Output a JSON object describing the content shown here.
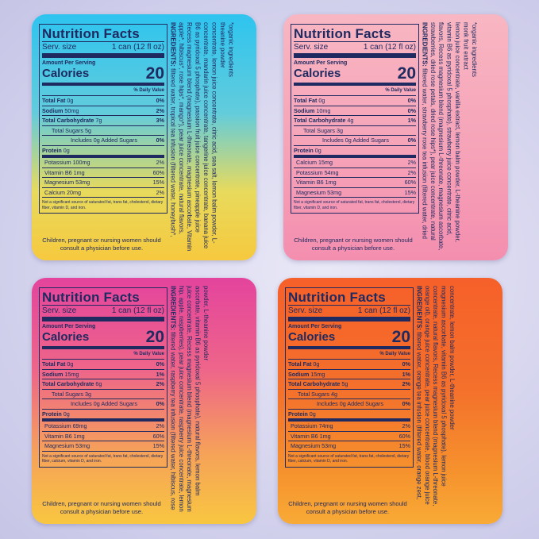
{
  "cards": [
    {
      "nutrition_title": "Nutrition Facts",
      "serving_label": "Serv. size",
      "serving_size": "1 can (12 fl oz)",
      "amount_per_serving": "Amount Per Serving",
      "calories_label": "Calories",
      "calories": 20,
      "daily_value_header": "% Daily Value",
      "macros": [
        {
          "name": "Total Fat",
          "amount": "0g",
          "dv": "0%"
        },
        {
          "name": "Sodium",
          "amount": "50mg",
          "dv": "2%"
        },
        {
          "name": "Total Carbohydrate",
          "amount": "7g",
          "dv": "3%"
        },
        {
          "name": "Total Sugars",
          "amount": "5g"
        },
        {
          "name": "Includes 0g Added Sugars",
          "dv": "0%"
        },
        {
          "name": "Protein",
          "amount": "0g"
        }
      ],
      "micros": [
        {
          "name": "Potassium",
          "amount": "100mg",
          "dv": "2%"
        },
        {
          "name": "Vitamin B6",
          "amount": "1mg",
          "dv": "60%"
        },
        {
          "name": "Magnesium",
          "amount": "53mg",
          "dv": "15%"
        },
        {
          "name": "Calcium",
          "amount": "20mg",
          "dv": "2%"
        }
      ],
      "footnote": "Not a significant source of saturated fat, trans fat, cholesterol, dietary fiber, vitamin D, and iron.",
      "warning": "Children, pregnant or nursing women should consult a physician before use.",
      "ingredients_label": "INGREDIENTS:",
      "ingredients": "filtered water, tropical tea infusion (filtered water, honeybush*, apple*, hibiscus*, rose hips*, mango*), pear juice concentrate, natural flavors, Recess magnesium blend (magnesium L-threonate, magnesium ascorbate, Vitamin B6 as pyridoxal 5 phosphate), passion fruit juice concentrate, pineapple juice concentrate, mandarin juice concentrate, tangerine juice concentrate, banana juice concentrate, lemon juice concentrate, citric acid, sea salt, lemon balm powder, L-theanine powder",
      "organic_note": "*organic ingredients"
    },
    {
      "nutrition_title": "Nutrition Facts",
      "serving_label": "Serv. size",
      "serving_size": "1 can (12 fl oz)",
      "amount_per_serving": "Amount Per Serving",
      "calories_label": "Calories",
      "calories": 20,
      "daily_value_header": "% Daily Value",
      "macros": [
        {
          "name": "Total Fat",
          "amount": "0g",
          "dv": "0%"
        },
        {
          "name": "Sodium",
          "amount": "10mg",
          "dv": "0%"
        },
        {
          "name": "Total Carbohydrate",
          "amount": "4g",
          "dv": "1%"
        },
        {
          "name": "Total Sugars",
          "amount": "3g"
        },
        {
          "name": "Includes 0g Added Sugars",
          "dv": "0%"
        },
        {
          "name": "Protein",
          "amount": "0g"
        }
      ],
      "micros": [
        {
          "name": "Calcium",
          "amount": "15mg",
          "dv": "2%"
        },
        {
          "name": "Potassium",
          "amount": "54mg",
          "dv": "2%"
        },
        {
          "name": "Vitamin B6",
          "amount": "1mg",
          "dv": "60%"
        },
        {
          "name": "Magnesium",
          "amount": "53mg",
          "dv": "15%"
        }
      ],
      "footnote": "Not a significant source of saturated fat, trans fat, cholesterol, dietary fiber, vitamin D, and iron.",
      "warning": "Children, pregnant or nursing women should consult a physician before use.",
      "ingredients_label": "INGREDIENTS:",
      "ingredients": "filtered water, strawberry rose tea infusion (filtered water, dried strawberries, dried rose petals, dried rose hips*), pear juice concentrate, natural flavors, Recess magnesium blend (magnesium L-threonate, magnesium ascorbate, vitamin B6 as pyridoxal 5 phosphate), strawberry juice concentrate, citric acid, lemon juice concentrate, vanilla extract, lemon balm powder, L-theanine powder, monk fruit extract",
      "organic_note": "*organic ingredients"
    },
    {
      "nutrition_title": "Nutrition Facts",
      "serving_label": "Serv. size",
      "serving_size": "1 can (12 fl oz)",
      "amount_per_serving": "Amount Per Serving",
      "calories_label": "Calories",
      "calories": 20,
      "daily_value_header": "% Daily Value",
      "macros": [
        {
          "name": "Total Fat",
          "amount": "0g",
          "dv": "0%"
        },
        {
          "name": "Sodium",
          "amount": "15mg",
          "dv": "1%"
        },
        {
          "name": "Total Carbohydrate",
          "amount": "6g",
          "dv": "2%"
        },
        {
          "name": "Total Sugars",
          "amount": "3g"
        },
        {
          "name": "Includes 0g Added Sugars",
          "dv": "0%"
        },
        {
          "name": "Protein",
          "amount": "0g"
        }
      ],
      "micros": [
        {
          "name": "Potassium",
          "amount": "69mg",
          "dv": "2%"
        },
        {
          "name": "Vitamin B6",
          "amount": "1mg",
          "dv": "60%"
        },
        {
          "name": "Magnesium",
          "amount": "53mg",
          "dv": "15%"
        }
      ],
      "footnote": "Not a significant source of saturated fat, trans fat, cholesterol, dietary fiber, calcium, vitamin D, and iron.",
      "warning": "Children, pregnant or nursing women should consult a physician before use.",
      "ingredients_label": "INGREDIENTS:",
      "ingredients": "filtered water, raspberry tea infusion (filtered water, hibiscus, rose hip, apple, raspberries), pear juice concentrate, raspberry juice concentrate, lemon juice concentrate, Recess magnesium blend (magnesium L-threonate, magnesium ascorbate, vitamin B6 as pyridoxal 5 phosphate), natural flavors, lemon balm powder, L-theanine powder"
    },
    {
      "nutrition_title": "Nutrition Facts",
      "serving_label": "Serv. size",
      "serving_size": "1 can (12 fl oz)",
      "amount_per_serving": "Amount Per Serving",
      "calories_label": "Calories",
      "calories": 20,
      "daily_value_header": "% Daily Value",
      "macros": [
        {
          "name": "Total Fat",
          "amount": "0g",
          "dv": "0%"
        },
        {
          "name": "Sodium",
          "amount": "15mg",
          "dv": "1%"
        },
        {
          "name": "Total Carbohydrate",
          "amount": "5g",
          "dv": "2%"
        },
        {
          "name": "Total Sugars",
          "amount": "4g"
        },
        {
          "name": "Includes 0g Added Sugars",
          "dv": "0%"
        },
        {
          "name": "Protein",
          "amount": "0g"
        }
      ],
      "micros": [
        {
          "name": "Potassium",
          "amount": "74mg",
          "dv": "2%"
        },
        {
          "name": "Vitamin B6",
          "amount": "1mg",
          "dv": "60%"
        },
        {
          "name": "Magnesium",
          "amount": "53mg",
          "dv": "15%"
        }
      ],
      "footnote": "Not a significant source of saturated fat, trans fat, cholesterol, dietary fiber, calcium, vitamin D, and iron.",
      "warning": "Children, pregnant or nursing women should consult a physician before use.",
      "ingredients_label": "INGREDIENTS:",
      "ingredients": "filtered water, orange tea infusion (filtered water, orange zest, orange oil), orange juice concentrate, pear juice concentrate, blood orange juice concentrate, natural flavors, Recess magnesium blend (magnesium L-threonate, magnesium ascorbate, vitamin B6 as pyridoxal 5 phosphate), lemon juice concentrate, lemon balm powder, L-theanine powder"
    }
  ]
}
